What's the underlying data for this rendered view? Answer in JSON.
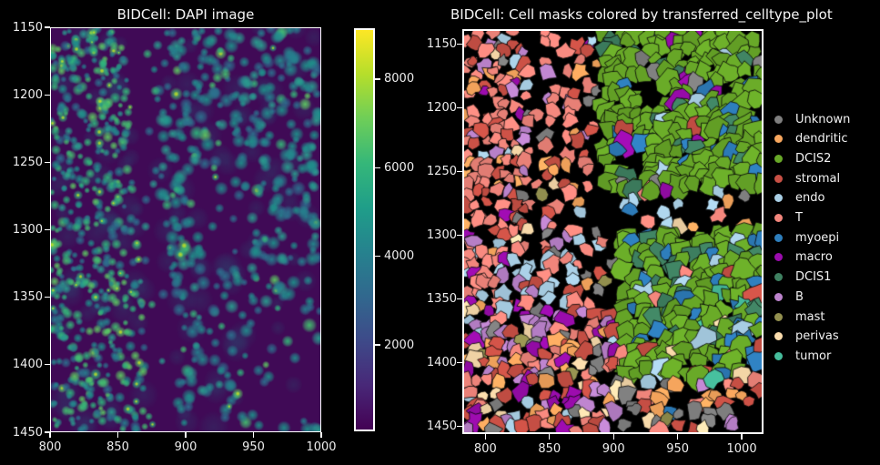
{
  "figure": {
    "background": "#000000",
    "text_color": "#f2f2f2",
    "spine_color": "#ffffff"
  },
  "left_plot": {
    "title": "BIDCell: DAPI image"
  },
  "right_plot": {
    "title": "BIDCell: Cell masks colored by transferred_celltype_plot"
  },
  "legend": {
    "items": [
      {
        "label": "Unknown",
        "color": "#7f7f7f"
      },
      {
        "label": "dendritic",
        "color": "#f8a75e"
      },
      {
        "label": "DCIS2",
        "color": "#68a828"
      },
      {
        "label": "stromal",
        "color": "#c85045"
      },
      {
        "label": "endo",
        "color": "#a9cfe5"
      },
      {
        "label": "T",
        "color": "#f2867c"
      },
      {
        "label": "myoepi",
        "color": "#2e7ebc"
      },
      {
        "label": "macro",
        "color": "#9a0cac"
      },
      {
        "label": "DCIS1",
        "color": "#3f8161"
      },
      {
        "label": "B",
        "color": "#bc83cc"
      },
      {
        "label": "mast",
        "color": "#93904f"
      },
      {
        "label": "perivas",
        "color": "#fbdcac"
      },
      {
        "label": "tumor",
        "color": "#46bd9c"
      }
    ]
  },
  "chart_data": [
    {
      "type": "heatmap",
      "subplot": "left",
      "title": "BIDCell: DAPI image",
      "xlabel": "",
      "ylabel": "",
      "xlim": [
        800,
        1000
      ],
      "ylim_display": [
        1450,
        1150
      ],
      "x_ticks": [
        800,
        850,
        900,
        950,
        1000
      ],
      "y_ticks": [
        1150,
        1200,
        1250,
        1300,
        1350,
        1400,
        1450
      ],
      "grid": false,
      "colormap": "viridis",
      "colormap_stops": [
        "#440154",
        "#482878",
        "#3e4a89",
        "#31688e",
        "#26828e",
        "#1f9e89",
        "#35b779",
        "#6ece58",
        "#b5de2b",
        "#fde725"
      ],
      "colorbar": {
        "ticks": [
          2000,
          4000,
          6000,
          8000
        ],
        "range": [
          50,
          9150
        ]
      },
      "description": "DAPI nuclear stain intensity image in viridis colormap: dense bright green-teal nuclei band on the left third, a dark diagonal unstained band through the centre-left, dimmer teal nuclei over the right two-thirds",
      "render": {
        "background": "#400a56",
        "halo_color_rgb": [
          36,
          90,
          120
        ],
        "bright_colors": [
          "#35b779",
          "#44bf70",
          "#2fb47c",
          "#5ec962"
        ],
        "mid_colors": [
          "#1f8f8a",
          "#26808e",
          "#2a9d8f",
          "#238b8d",
          "#2d708e"
        ],
        "hot_color": "#d8e219",
        "dark_band": {
          "u_top": 0.32,
          "u_slope": 0.1,
          "halfwidth": 0.05
        },
        "dense_left_u": 0.35
      }
    },
    {
      "type": "segmentation",
      "subplot": "right",
      "title": "BIDCell: Cell masks colored by transferred_celltype_plot",
      "xlim": [
        782,
        1017
      ],
      "ylim_display": [
        1456,
        1138
      ],
      "x_ticks": [
        800,
        850,
        900,
        950,
        1000
      ],
      "y_ticks": [
        1150,
        1200,
        1250,
        1300,
        1350,
        1400,
        1450
      ],
      "grid": false,
      "background": "#000000",
      "legend_position": "right",
      "categories": [
        "Unknown",
        "dendritic",
        "DCIS2",
        "stromal",
        "endo",
        "T",
        "myoepi",
        "macro",
        "DCIS1",
        "B",
        "mast",
        "perivas",
        "tumor"
      ],
      "description": "Cell segmentation masks colored by transferred cell type: a T/stromal immune-rich strip on the left with orchid B cells and magenta macro patches, black unsegmented gaps, two large green DCIS2 blocks on the right with blue myoepi and dark-teal DCIS1 cells, mixed stromal/dendritic/macro cells and gray Unknown cells along the bottom",
      "render_regions": [
        {
          "name": "endo-patch",
          "u": [
            0.12,
            0.38
          ],
          "v": [
            0.56,
            0.7
          ],
          "coverage": 0.85,
          "radius": 8,
          "weights": {
            "endo": 0.55,
            "T": 0.2,
            "macro": 0.1,
            "stromal": 0.1,
            "B": 0.05
          }
        },
        {
          "name": "immune-strip",
          "u": [
            0.0,
            0.37
          ],
          "v": [
            0.0,
            0.68
          ],
          "coverage": 0.92,
          "radius": 7,
          "weights": {
            "T": 0.5,
            "stromal": 0.13,
            "B": 0.12,
            "dendritic": 0.08,
            "Unknown": 0.05,
            "perivas": 0.04,
            "macro": 0.04,
            "endo": 0.03,
            "mast": 0.01
          }
        },
        {
          "name": "mixed-lower-left",
          "u": [
            0.0,
            0.52
          ],
          "v": [
            0.68,
            1.0
          ],
          "coverage": 0.8,
          "radius": 8,
          "weights": {
            "stromal": 0.2,
            "T": 0.18,
            "macro": 0.13,
            "B": 0.12,
            "dendritic": 0.12,
            "perivas": 0.08,
            "endo": 0.06,
            "Unknown": 0.07,
            "mast": 0.04
          }
        },
        {
          "name": "sparse-column",
          "u": [
            0.37,
            0.47
          ],
          "v": [
            0.0,
            0.68
          ],
          "coverage": 0.34,
          "radius": 7,
          "weights": {
            "stromal": 0.3,
            "T": 0.25,
            "dendritic": 0.13,
            "Unknown": 0.1,
            "endo": 0.08,
            "macro": 0.07,
            "B": 0.07
          }
        },
        {
          "name": "dcis2-upper",
          "u": [
            0.47,
            1.01
          ],
          "v": [
            0.0,
            0.4
          ],
          "coverage": 0.9,
          "radius": 10,
          "weights": {
            "DCIS2": 0.76,
            "myoepi": 0.08,
            "macro": 0.05,
            "DCIS1": 0.06,
            "Unknown": 0.02,
            "endo": 0.02,
            "stromal": 0.01
          }
        },
        {
          "name": "mid-gap",
          "u": [
            0.47,
            1.01
          ],
          "v": [
            0.4,
            0.5
          ],
          "coverage": 0.24,
          "radius": 8,
          "weights": {
            "endo": 0.3,
            "T": 0.22,
            "stromal": 0.13,
            "myoepi": 0.1,
            "Unknown": 0.08,
            "perivas": 0.07,
            "mast": 0.05,
            "dendritic": 0.05
          }
        },
        {
          "name": "dcis2-lower",
          "u": [
            0.52,
            1.01
          ],
          "v": [
            0.5,
            0.87
          ],
          "coverage": 0.88,
          "radius": 10,
          "weights": {
            "DCIS2": 0.6,
            "myoepi": 0.16,
            "DCIS1": 0.11,
            "endo": 0.04,
            "T": 0.03,
            "tumor": 0.02,
            "stromal": 0.02,
            "perivas": 0.02
          }
        },
        {
          "name": "west-gap",
          "u": [
            0.47,
            0.52
          ],
          "v": [
            0.5,
            0.87
          ],
          "coverage": 0.3,
          "radius": 8,
          "weights": {
            "endo": 0.3,
            "T": 0.25,
            "stromal": 0.15,
            "dendritic": 0.1,
            "Unknown": 0.1,
            "perivas": 0.05,
            "mast": 0.05
          }
        },
        {
          "name": "bottom-right",
          "u": [
            0.52,
            1.01
          ],
          "v": [
            0.87,
            1.0
          ],
          "coverage": 0.5,
          "radius": 8,
          "weights": {
            "Unknown": 0.28,
            "stromal": 0.16,
            "endo": 0.12,
            "T": 0.1,
            "dendritic": 0.08,
            "myoepi": 0.06,
            "B": 0.06,
            "macro": 0.05,
            "perivas": 0.05,
            "mast": 0.04
          }
        }
      ],
      "channels": [
        {
          "u": 0.25,
          "halfwidth": 0.022
        },
        {
          "u": 0.325,
          "halfwidth": 0.016
        }
      ],
      "holes": [
        {
          "u": 0.625,
          "v": 0.155,
          "r": 0.055
        },
        {
          "u": 0.585,
          "v": 0.33,
          "r": 0.04
        }
      ]
    }
  ]
}
